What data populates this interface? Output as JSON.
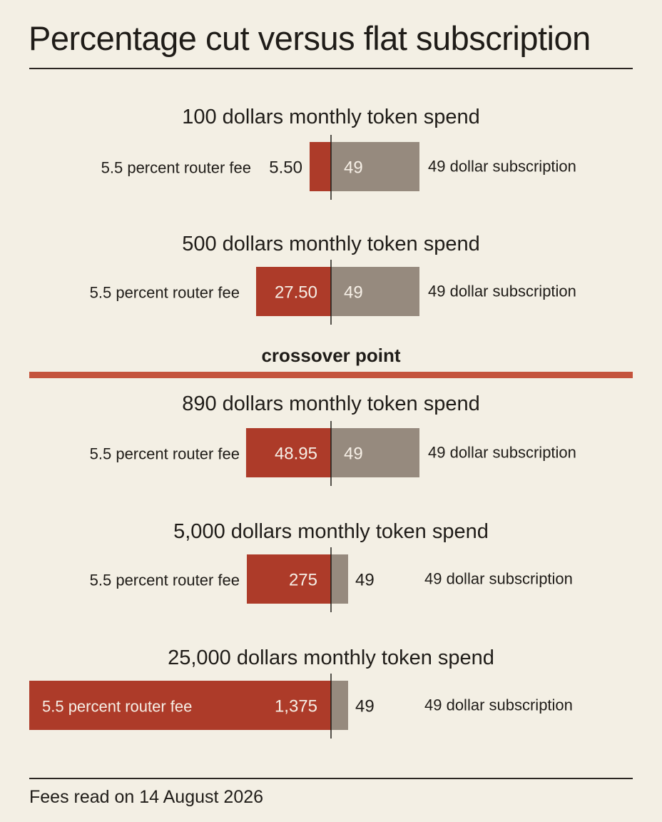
{
  "title": "Percentage cut versus flat subscription",
  "colors": {
    "fee": "#ad3b29",
    "subscription": "#968a7e",
    "crossover": "#c4533c",
    "text": "#1f1c18",
    "text_light": "#f6efe6"
  },
  "crossover_label": "crossover point",
  "footer": "Fees read on 14 August 2026",
  "chart_data": {
    "type": "bar",
    "categories": [
      "100 dollars monthly token spend",
      "500 dollars monthly token spend",
      "890 dollars monthly token spend",
      "5,000 dollars monthly token spend",
      "25,000 dollars monthly token spend"
    ],
    "series": [
      {
        "name": "5.5 percent router fee",
        "values": [
          5.5,
          27.5,
          48.95,
          275,
          1375
        ],
        "labels": [
          "5.50",
          "27.50",
          "48.95",
          "275",
          "1,375"
        ]
      },
      {
        "name": "49 dollar subscription",
        "values": [
          49,
          49,
          49,
          49,
          49
        ],
        "labels": [
          "49",
          "49",
          "49",
          "49",
          "49"
        ]
      }
    ],
    "crossover_between": [
      1,
      2
    ]
  }
}
